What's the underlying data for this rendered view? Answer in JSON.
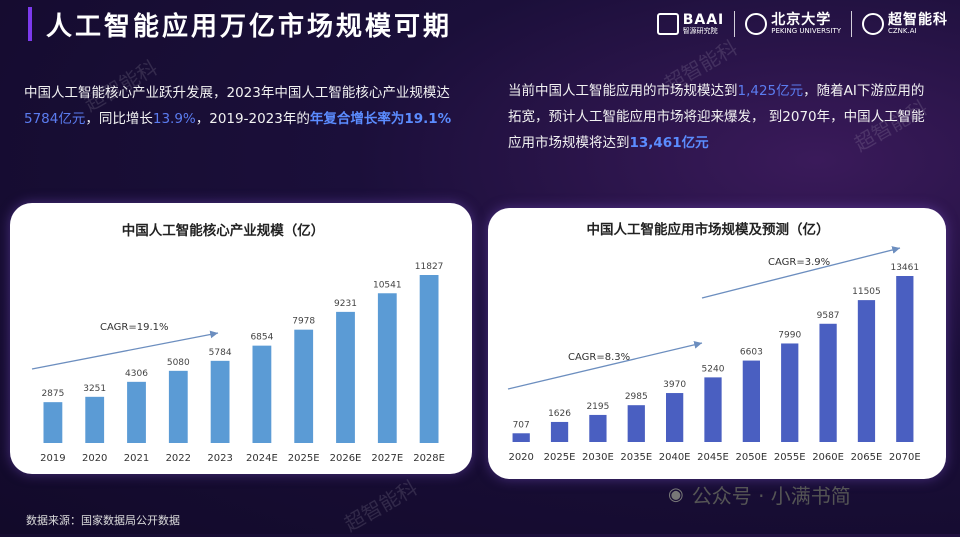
{
  "header": {
    "title": "人工智能应用万亿市场规模可期",
    "logos": [
      {
        "main": "BAAI",
        "sub": "智源研究院",
        "icon": "baai-cube-icon"
      },
      {
        "main": "北京大学",
        "sub": "PEKING UNIVERSITY",
        "icon": "pku-seal-icon"
      },
      {
        "main": "超智能科",
        "sub": "CZNK.AI",
        "icon": "cznk-head-icon"
      }
    ]
  },
  "intro_left": {
    "p1": "中国人工智能核心产业跃升发展，2023年中国人工智能核心产业规模达",
    "v1": "5784亿元",
    "p2": "，同比增长",
    "v2": "13.9%",
    "p3": "，2019-2023年的",
    "v3": "年复合增长率为19.1%"
  },
  "intro_right": {
    "p1": "当前中国人工智能应用的市场规模达到",
    "v1": "1,425亿元",
    "p2": "，随着AI下游应用的拓宽，预计人工智能应用市场将迎来爆发， 到2070年，中国人工智能应用市场规模将达到",
    "v2": "13,461亿元"
  },
  "chart_data": [
    {
      "type": "bar",
      "title": "中国人工智能核心产业规模（亿）",
      "categories": [
        "2019",
        "2020",
        "2021",
        "2022",
        "2023",
        "2024E",
        "2025E",
        "2026E",
        "2027E",
        "2028E"
      ],
      "values": [
        2875,
        3251,
        4306,
        5080,
        5784,
        6854,
        7978,
        9231,
        10541,
        11827
      ],
      "value_labels": [
        "2875",
        "3251",
        "4306",
        "5080",
        "5784",
        "6854",
        "7978",
        "9231",
        "10541",
        "11827"
      ],
      "ylim": [
        0,
        11827
      ],
      "annotations": [
        {
          "text": "CAGR=19.1%"
        }
      ],
      "colors": {
        "bar": "#5b9bd5",
        "arrow": "#6c8ebf"
      }
    },
    {
      "type": "bar",
      "title": "中国人工智能应用市场规模及预测（亿）",
      "categories": [
        "2020",
        "2025E",
        "2030E",
        "2035E",
        "2040E",
        "2045E",
        "2050E",
        "2055E",
        "2060E",
        "2065E",
        "2070E"
      ],
      "values": [
        707,
        1626,
        2195,
        2985,
        3970,
        5240,
        6603,
        7990,
        9587,
        11505,
        13461
      ],
      "value_labels": [
        "707",
        "1626",
        "2195",
        "2985",
        "3970",
        "5240",
        "6603",
        "7990",
        "9587",
        "11505",
        "13461"
      ],
      "ylim": [
        0,
        13461
      ],
      "annotations": [
        {
          "text": "CAGR=8.3%"
        },
        {
          "text": "CAGR=3.9%"
        }
      ],
      "colors": {
        "bar": "#4a5fc1",
        "arrow": "#6c8ebf"
      }
    }
  ],
  "source": "数据来源：国家数据局公开数据",
  "wechat": {
    "label": "公众号 · 小满书简",
    "icon": "wechat-icon"
  },
  "watermark": "超智能科"
}
